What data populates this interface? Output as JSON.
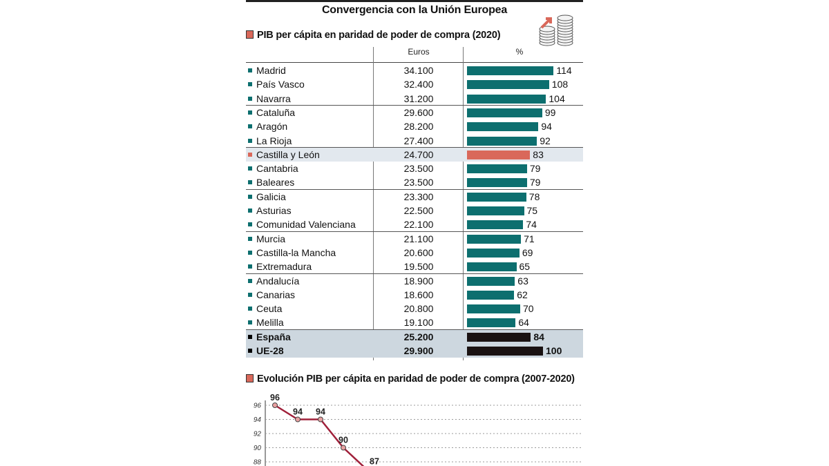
{
  "title": "Convergencia con la Unión Europea",
  "colors": {
    "bar": "#0d6f6f",
    "highlight": "#d9685a",
    "total": "#1a1212",
    "line": "#a0203a"
  },
  "table": {
    "subtitle": "PIB per cápita en paridad de poder de compra (2020)",
    "col_euros": "Euros",
    "col_pct": "%"
  },
  "chart_data": [
    {
      "type": "bar",
      "title": "PIB per cápita en paridad de poder de compra (2020)",
      "orientation": "horizontal",
      "columns": [
        "Euros",
        "%"
      ],
      "rows": [
        {
          "name": "Madrid",
          "euros": "34.100",
          "pct": 114,
          "group": 0,
          "style": "normal"
        },
        {
          "name": "País Vasco",
          "euros": "32.400",
          "pct": 108,
          "group": 0,
          "style": "normal"
        },
        {
          "name": "Navarra",
          "euros": "31.200",
          "pct": 104,
          "group": 0,
          "style": "normal"
        },
        {
          "name": "Cataluña",
          "euros": "29.600",
          "pct": 99,
          "group": 1,
          "style": "normal"
        },
        {
          "name": "Aragón",
          "euros": "28.200",
          "pct": 94,
          "group": 1,
          "style": "normal"
        },
        {
          "name": "La Rioja",
          "euros": "27.400",
          "pct": 92,
          "group": 1,
          "style": "normal"
        },
        {
          "name": "Castilla y León",
          "euros": "24.700",
          "pct": 83,
          "group": 2,
          "style": "highlight"
        },
        {
          "name": "Cantabria",
          "euros": "23.500",
          "pct": 79,
          "group": 2,
          "style": "normal"
        },
        {
          "name": "Baleares",
          "euros": "23.500",
          "pct": 79,
          "group": 2,
          "style": "normal"
        },
        {
          "name": "Galicia",
          "euros": "23.300",
          "pct": 78,
          "group": 3,
          "style": "normal"
        },
        {
          "name": "Asturias",
          "euros": "22.500",
          "pct": 75,
          "group": 3,
          "style": "normal"
        },
        {
          "name": "Comunidad Valenciana",
          "euros": "22.100",
          "pct": 74,
          "group": 3,
          "style": "normal"
        },
        {
          "name": "Murcia",
          "euros": "21.100",
          "pct": 71,
          "group": 4,
          "style": "normal"
        },
        {
          "name": "Castilla-la Mancha",
          "euros": "20.600",
          "pct": 69,
          "group": 4,
          "style": "normal"
        },
        {
          "name": "Extremadura",
          "euros": "19.500",
          "pct": 65,
          "group": 4,
          "style": "normal"
        },
        {
          "name": "Andalucía",
          "euros": "18.900",
          "pct": 63,
          "group": 5,
          "style": "normal"
        },
        {
          "name": "Canarias",
          "euros": "18.600",
          "pct": 62,
          "group": 5,
          "style": "normal"
        },
        {
          "name": "Ceuta",
          "euros": "20.800",
          "pct": 70,
          "group": 5,
          "style": "normal"
        },
        {
          "name": "Melilla",
          "euros": "19.100",
          "pct": 64,
          "group": 5,
          "style": "normal"
        },
        {
          "name": "España",
          "euros": "25.200",
          "pct": 84,
          "group": 6,
          "style": "total"
        },
        {
          "name": "UE-28",
          "euros": "29.900",
          "pct": 100,
          "group": 6,
          "style": "total"
        }
      ]
    },
    {
      "type": "line",
      "title": "Evolución PIB per cápita en paridad de poder de compra (2007-2020)",
      "yticks": [
        96,
        94,
        92,
        90,
        88
      ],
      "values": [
        96,
        94,
        94,
        90,
        87
      ],
      "ylim": [
        87,
        96.5
      ],
      "grid": true
    }
  ]
}
